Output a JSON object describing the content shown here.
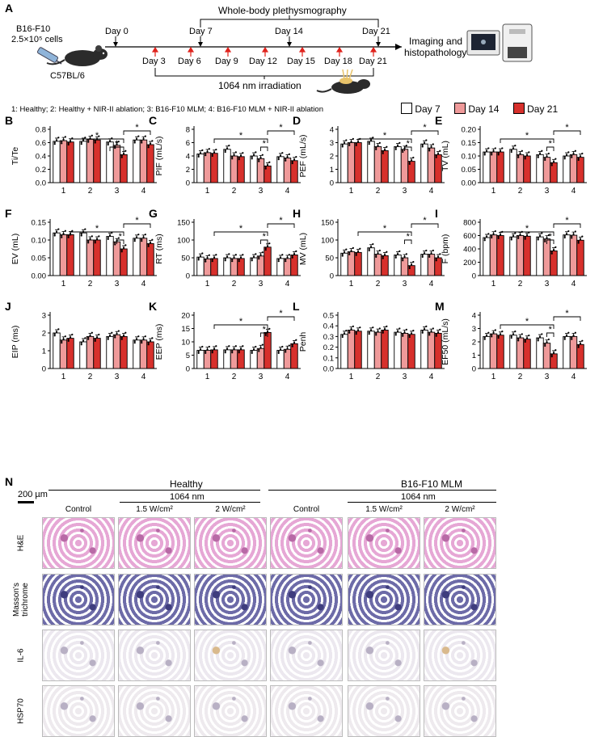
{
  "panel_a": {
    "label": "A",
    "cells_line1": "B16-F10",
    "cells_line2": "2.5×10⁵ cells",
    "mouse_strain": "C57BL/6",
    "wbp_label": "Whole-body plethysmography",
    "top_days": [
      "Day 0",
      "Day 7",
      "Day 14",
      "Day 21"
    ],
    "bottom_days": [
      "Day 3",
      "Day 6",
      "Day 9",
      "Day 12",
      "Day 15",
      "Day 18",
      "Day 21"
    ],
    "irradiation_label": "1064 nm irradiation",
    "end_label_line1": "Imaging and",
    "end_label_line2": "histopathology",
    "colors": {
      "arrow_red": "#e0231c",
      "day21": "#d7302c",
      "day14": "#ef9a9a",
      "day7": "#ffffff"
    }
  },
  "group_legend": "1: Healthy; 2: Healthy + NIR-II ablation; 3: B16-F10 MLM; 4: B16-F10 MLM + NIR-II ablation",
  "series_legend": [
    "Day 7",
    "Day 14",
    "Day 21"
  ],
  "chart_data": [
    {
      "label": "B",
      "type": "bar",
      "ylabel": "Ti/Te",
      "ylim": [
        0,
        0.8
      ],
      "yticks": [
        "0.0",
        "0.2",
        "0.4",
        "0.6",
        "0.8"
      ],
      "categories": [
        "1",
        "2",
        "3",
        "4"
      ],
      "series": [
        {
          "name": "Day 7",
          "values": [
            0.62,
            0.62,
            0.61,
            0.64
          ]
        },
        {
          "name": "Day 14",
          "values": [
            0.63,
            0.65,
            0.56,
            0.64
          ]
        },
        {
          "name": "Day 21",
          "values": [
            0.61,
            0.64,
            0.42,
            0.57
          ]
        }
      ]
    },
    {
      "label": "C",
      "type": "bar",
      "ylabel": "PIF (mL/s)",
      "ylim": [
        0,
        8
      ],
      "yticks": [
        "0",
        "2",
        "4",
        "6",
        "8"
      ],
      "categories": [
        "1",
        "2",
        "3",
        "4"
      ],
      "series": [
        {
          "name": "Day 7",
          "values": [
            4.3,
            5.0,
            4.0,
            3.9
          ]
        },
        {
          "name": "Day 14",
          "values": [
            4.5,
            4.0,
            3.6,
            3.7
          ]
        },
        {
          "name": "Day 21",
          "values": [
            4.4,
            3.9,
            2.5,
            3.3
          ]
        }
      ]
    },
    {
      "label": "D",
      "type": "bar",
      "ylabel": "PEF (mL/s)",
      "ylim": [
        0,
        4
      ],
      "yticks": [
        "0",
        "1",
        "2",
        "3",
        "4"
      ],
      "categories": [
        "1",
        "2",
        "3",
        "4"
      ],
      "series": [
        {
          "name": "Day 7",
          "values": [
            2.9,
            3.1,
            2.7,
            2.9
          ]
        },
        {
          "name": "Day 14",
          "values": [
            3.0,
            2.7,
            2.5,
            2.6
          ]
        },
        {
          "name": "Day 21",
          "values": [
            3.0,
            2.4,
            1.6,
            2.1
          ]
        }
      ]
    },
    {
      "label": "E",
      "type": "bar",
      "ylabel": "TV (mL)",
      "ylim": [
        0,
        0.2
      ],
      "yticks": [
        "0.00",
        "0.05",
        "0.10",
        "0.15",
        "0.20"
      ],
      "categories": [
        "1",
        "2",
        "3",
        "4"
      ],
      "series": [
        {
          "name": "Day 7",
          "values": [
            0.115,
            0.125,
            0.105,
            0.1
          ]
        },
        {
          "name": "Day 14",
          "values": [
            0.115,
            0.105,
            0.095,
            0.105
          ]
        },
        {
          "name": "Day 21",
          "values": [
            0.115,
            0.1,
            0.075,
            0.095
          ]
        }
      ]
    },
    {
      "label": "F",
      "type": "bar",
      "ylabel": "EV (mL)",
      "ylim": [
        0,
        0.15
      ],
      "yticks": [
        "0.00",
        "0.05",
        "0.10",
        "0.15"
      ],
      "categories": [
        "1",
        "2",
        "3",
        "4"
      ],
      "series": [
        {
          "name": "Day 7",
          "values": [
            0.12,
            0.12,
            0.11,
            0.105
          ]
        },
        {
          "name": "Day 14",
          "values": [
            0.115,
            0.1,
            0.095,
            0.105
          ]
        },
        {
          "name": "Day 21",
          "values": [
            0.115,
            0.1,
            0.075,
            0.09
          ]
        }
      ]
    },
    {
      "label": "G",
      "type": "bar",
      "ylabel": "RT (ms)",
      "ylim": [
        0,
        150
      ],
      "yticks": [
        "0",
        "50",
        "100",
        "150"
      ],
      "categories": [
        "1",
        "2",
        "3",
        "4"
      ],
      "series": [
        {
          "name": "Day 7",
          "values": [
            52,
            50,
            50,
            48
          ]
        },
        {
          "name": "Day 14",
          "values": [
            47,
            48,
            55,
            48
          ]
        },
        {
          "name": "Day 21",
          "values": [
            48,
            48,
            80,
            58
          ]
        }
      ]
    },
    {
      "label": "H",
      "type": "bar",
      "ylabel": "MV (mL)",
      "ylim": [
        0,
        150
      ],
      "yticks": [
        "0",
        "50",
        "100",
        "150"
      ],
      "categories": [
        "1",
        "2",
        "3",
        "4"
      ],
      "series": [
        {
          "name": "Day 7",
          "values": [
            63,
            78,
            58,
            60
          ]
        },
        {
          "name": "Day 14",
          "values": [
            67,
            60,
            50,
            60
          ]
        },
        {
          "name": "Day 21",
          "values": [
            65,
            56,
            28,
            50
          ]
        }
      ]
    },
    {
      "label": "I",
      "type": "bar",
      "ylabel": "F (bpm)",
      "ylim": [
        0,
        800
      ],
      "yticks": [
        "0",
        "200",
        "400",
        "600",
        "800"
      ],
      "categories": [
        "1",
        "2",
        "3",
        "4"
      ],
      "series": [
        {
          "name": "Day 7",
          "values": [
            570,
            580,
            580,
            610
          ]
        },
        {
          "name": "Day 14",
          "values": [
            610,
            600,
            550,
            605
          ]
        },
        {
          "name": "Day 21",
          "values": [
            600,
            590,
            370,
            530
          ]
        }
      ]
    },
    {
      "label": "J",
      "type": "bar",
      "ylabel": "EIP (ms)",
      "ylim": [
        0,
        3
      ],
      "yticks": [
        "0",
        "1",
        "2",
        "3"
      ],
      "categories": [
        "1",
        "2",
        "3",
        "4"
      ],
      "series": [
        {
          "name": "Day 7",
          "values": [
            2.0,
            1.5,
            1.8,
            1.6
          ]
        },
        {
          "name": "Day 14",
          "values": [
            1.6,
            1.8,
            1.9,
            1.6
          ]
        },
        {
          "name": "Day 21",
          "values": [
            1.7,
            1.7,
            1.8,
            1.5
          ]
        }
      ]
    },
    {
      "label": "K",
      "type": "bar",
      "ylabel": "EEP (ms)",
      "ylim": [
        0,
        20
      ],
      "yticks": [
        "0",
        "5",
        "10",
        "15",
        "20"
      ],
      "categories": [
        "1",
        "2",
        "3",
        "4"
      ],
      "series": [
        {
          "name": "Day 7",
          "values": [
            6.8,
            7.0,
            6.8,
            6.8
          ]
        },
        {
          "name": "Day 14",
          "values": [
            6.8,
            7.0,
            7.5,
            7.2
          ]
        },
        {
          "name": "Day 21",
          "values": [
            7.0,
            7.0,
            13.5,
            9.3
          ]
        }
      ]
    },
    {
      "label": "L",
      "type": "bar",
      "ylabel": "Penh",
      "ylim": [
        0,
        0.5
      ],
      "yticks": [
        "0.0",
        "0.1",
        "0.2",
        "0.3",
        "0.4",
        "0.5"
      ],
      "categories": [
        "1",
        "2",
        "3",
        "4"
      ],
      "series": [
        {
          "name": "Day 7",
          "values": [
            0.32,
            0.35,
            0.34,
            0.36
          ]
        },
        {
          "name": "Day 14",
          "values": [
            0.36,
            0.34,
            0.33,
            0.34
          ]
        },
        {
          "name": "Day 21",
          "values": [
            0.35,
            0.36,
            0.32,
            0.33
          ]
        }
      ]
    },
    {
      "label": "M",
      "type": "bar",
      "ylabel": "EF50 (mL/s)",
      "ylim": [
        0,
        4
      ],
      "yticks": [
        "0",
        "1",
        "2",
        "3",
        "4"
      ],
      "categories": [
        "1",
        "2",
        "3",
        "4"
      ],
      "series": [
        {
          "name": "Day 7",
          "values": [
            2.4,
            2.5,
            2.3,
            2.4
          ]
        },
        {
          "name": "Day 14",
          "values": [
            2.6,
            2.3,
            1.9,
            2.4
          ]
        },
        {
          "name": "Day 21",
          "values": [
            2.5,
            2.2,
            1.1,
            1.8
          ]
        }
      ]
    }
  ],
  "panel_n": {
    "label": "N",
    "scale_bar": "200 µm",
    "group_healthy": "Healthy",
    "group_mlm": "B16-F10 MLM",
    "irradiation": "1064 nm",
    "columns": [
      "Control",
      "1.5 W/cm²",
      "2 W/cm²",
      "Control",
      "1.5 W/cm²",
      "2 W/cm²"
    ],
    "rows": [
      "H&E",
      "Masson's trichrome",
      "IL-6",
      "HSP70"
    ],
    "row_colors": [
      "#e6a7d5",
      "#6d6ba8",
      "#ece8ef",
      "#eeeaee"
    ]
  }
}
